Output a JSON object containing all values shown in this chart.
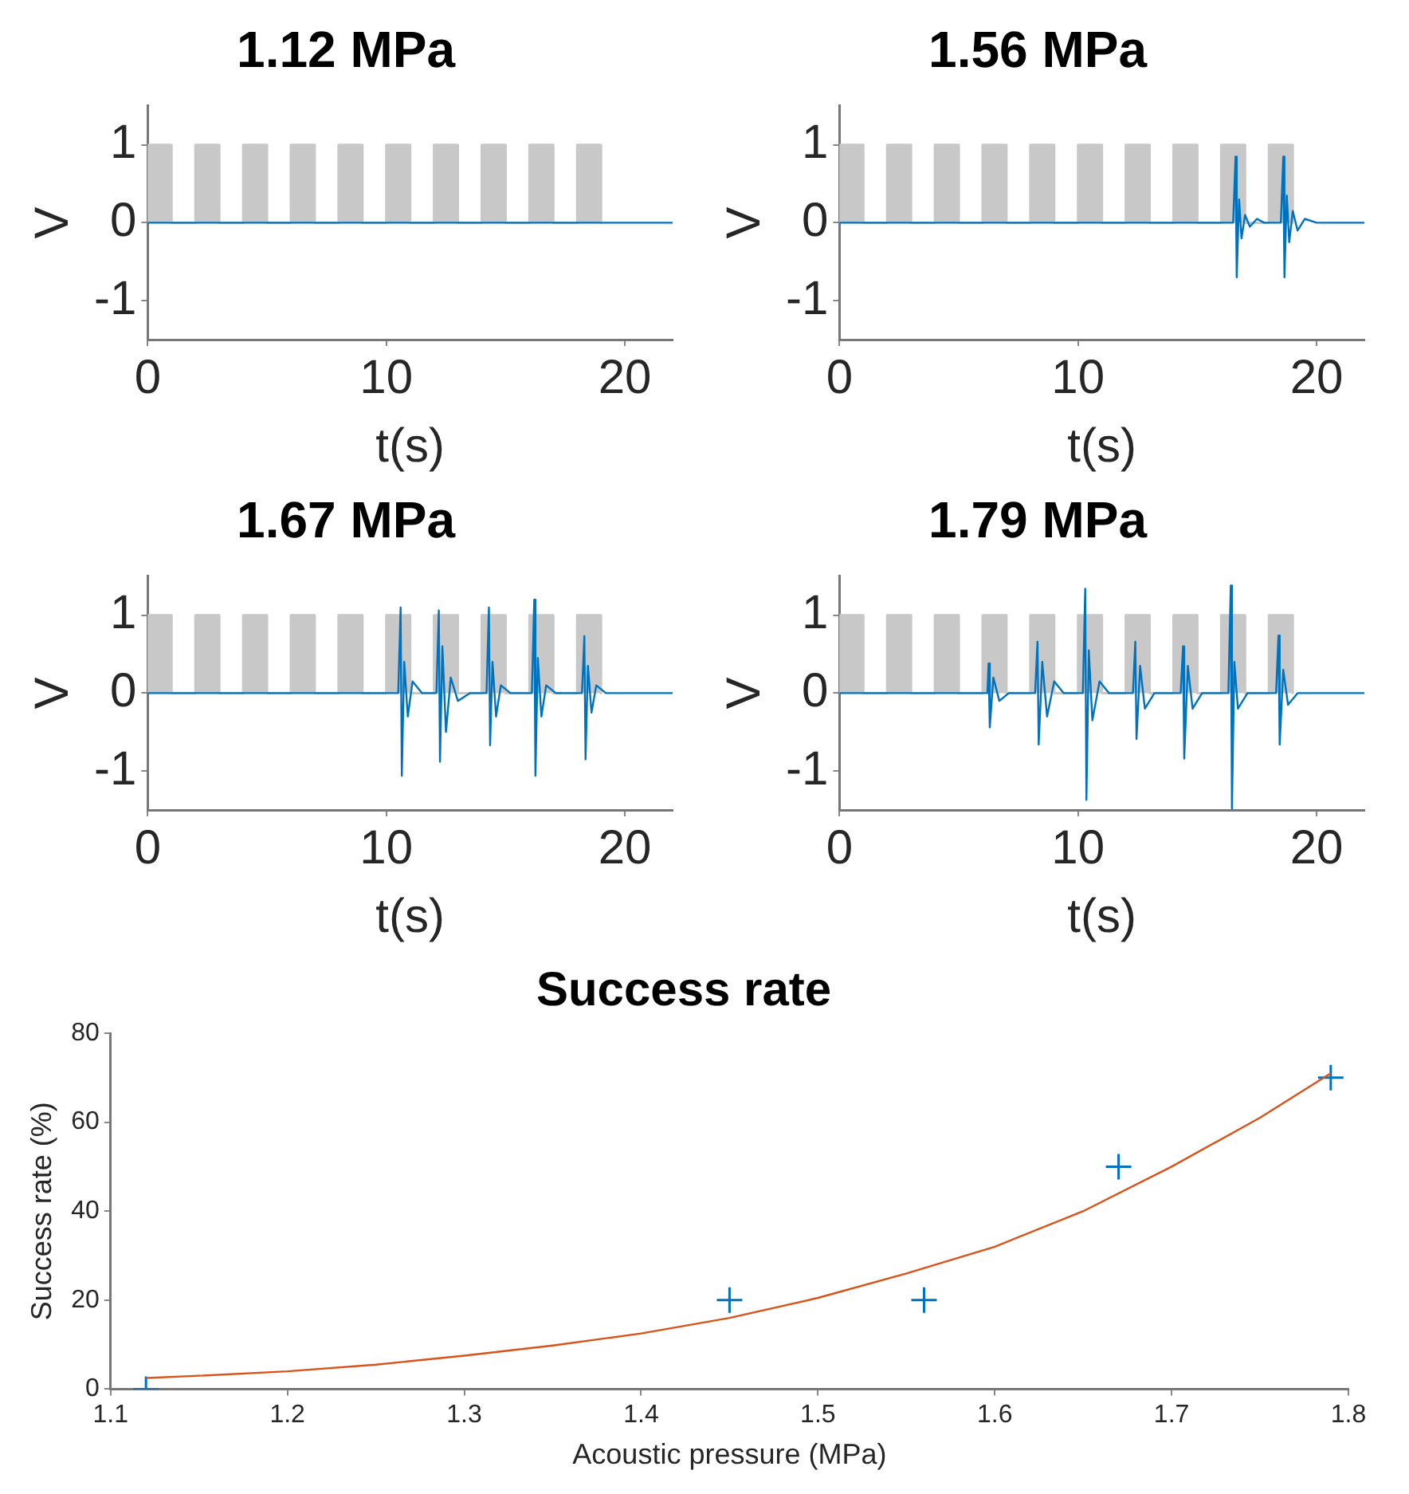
{
  "chart_data": [
    {
      "type": "line",
      "title": "1.12 MPa",
      "xlabel": "t(s)",
      "ylabel": "V",
      "xlim": [
        0,
        22
      ],
      "xticks": [
        0,
        10,
        20
      ],
      "ylim": [
        -1.5,
        1.5
      ],
      "yticks": [
        -1,
        0,
        1
      ],
      "grid": false,
      "series": [
        {
          "type": "area",
          "color": "#c8c8c8",
          "x": [
            0,
            0,
            1,
            1,
            2,
            2,
            3,
            3,
            4,
            4,
            5,
            5,
            6,
            6,
            7,
            7,
            8,
            8,
            9,
            9,
            10,
            10,
            11,
            11,
            12,
            12,
            13,
            13,
            14,
            14,
            15,
            15,
            16,
            16,
            17,
            17,
            18,
            18,
            19,
            19
          ],
          "values": [
            0,
            1,
            1,
            0,
            0,
            1,
            1,
            0,
            0,
            1,
            1,
            0,
            0,
            1,
            1,
            0,
            0,
            1,
            1,
            0,
            0,
            1,
            1,
            0,
            0,
            1,
            1,
            0,
            0,
            1,
            1,
            0,
            0,
            1,
            1,
            0,
            0,
            1,
            1,
            0
          ]
        },
        {
          "color": "#0072bd",
          "x": [
            0,
            22
          ],
          "values": [
            0,
            0
          ]
        }
      ]
    },
    {
      "type": "line",
      "title": "1.56 MPa",
      "xlabel": "t(s)",
      "ylabel": "V",
      "xlim": [
        0,
        22
      ],
      "xticks": [
        0,
        10,
        20
      ],
      "ylim": [
        -1.5,
        1.5
      ],
      "yticks": [
        -1,
        0,
        1
      ],
      "grid": false,
      "series": [
        {
          "type": "area",
          "color": "#c8c8c8",
          "x": [
            0,
            0,
            1,
            1,
            2,
            2,
            3,
            3,
            4,
            4,
            5,
            5,
            6,
            6,
            7,
            7,
            8,
            8,
            9,
            9,
            10,
            10,
            11,
            11,
            12,
            12,
            13,
            13,
            14,
            14,
            15,
            15,
            16,
            16,
            17,
            17,
            18,
            18,
            19,
            19
          ],
          "values": [
            0,
            1,
            1,
            0,
            0,
            1,
            1,
            0,
            0,
            1,
            1,
            0,
            0,
            1,
            1,
            0,
            0,
            1,
            1,
            0,
            0,
            1,
            1,
            0,
            0,
            1,
            1,
            0,
            0,
            1,
            1,
            0,
            0,
            1,
            1,
            0,
            0,
            1,
            1,
            0
          ]
        },
        {
          "color": "#0072bd",
          "x": [
            0,
            16.5,
            16.6,
            16.65,
            16.75,
            16.85,
            17,
            17.2,
            17.5,
            17.8,
            18.5,
            18.6,
            18.65,
            18.75,
            18.85,
            19,
            19.2,
            19.5,
            20,
            22
          ],
          "values": [
            0,
            0,
            0.85,
            -0.7,
            0.3,
            -0.2,
            0.1,
            -0.05,
            0.05,
            0,
            0,
            0.85,
            -0.7,
            0.35,
            -0.25,
            0.15,
            -0.1,
            0.05,
            0,
            0
          ]
        }
      ]
    },
    {
      "type": "line",
      "title": "1.67 MPa",
      "xlabel": "t(s)",
      "ylabel": "V",
      "xlim": [
        0,
        22
      ],
      "xticks": [
        0,
        10,
        20
      ],
      "ylim": [
        -1.5,
        1.5
      ],
      "yticks": [
        -1,
        0,
        1
      ],
      "grid": false,
      "series": [
        {
          "type": "area",
          "color": "#c8c8c8",
          "x": [
            0,
            0,
            1,
            1,
            2,
            2,
            3,
            3,
            4,
            4,
            5,
            5,
            6,
            6,
            7,
            7,
            8,
            8,
            9,
            9,
            10,
            10,
            11,
            11,
            12,
            12,
            13,
            13,
            14,
            14,
            15,
            15,
            16,
            16,
            17,
            17,
            18,
            18,
            19,
            19
          ],
          "values": [
            0,
            1,
            1,
            0,
            0,
            1,
            1,
            0,
            0,
            1,
            1,
            0,
            0,
            1,
            1,
            0,
            0,
            1,
            1,
            0,
            0,
            1,
            1,
            0,
            0,
            1,
            1,
            0,
            0,
            1,
            1,
            0,
            0,
            1,
            1,
            0,
            0,
            1,
            1,
            0
          ]
        },
        {
          "color": "#0072bd",
          "x": [
            0,
            10.5,
            10.6,
            10.65,
            10.75,
            10.9,
            11.1,
            11.5,
            12.1,
            12.2,
            12.25,
            12.35,
            12.5,
            12.7,
            13,
            13.5,
            14.2,
            14.3,
            14.35,
            14.45,
            14.6,
            14.8,
            15.2,
            16.1,
            16.2,
            16.25,
            16.35,
            16.5,
            16.7,
            17.1,
            18.2,
            18.3,
            18.35,
            18.45,
            18.6,
            18.8,
            19.2,
            22
          ],
          "values": [
            0,
            0,
            1.1,
            -1.06,
            0.4,
            -0.3,
            0.15,
            0,
            0,
            1.06,
            -0.88,
            0.6,
            -0.5,
            0.2,
            -0.1,
            0,
            0,
            1.1,
            -0.67,
            0.4,
            -0.3,
            0.1,
            0,
            0,
            1.2,
            -1.06,
            0.45,
            -0.3,
            0.1,
            0,
            0,
            0.73,
            -0.85,
            0.35,
            -0.25,
            0.1,
            0,
            0
          ]
        }
      ]
    },
    {
      "type": "line",
      "title": "1.79 MPa",
      "xlabel": "t(s)",
      "ylabel": "V",
      "xlim": [
        0,
        22
      ],
      "xticks": [
        0,
        10,
        20
      ],
      "ylim": [
        -1.5,
        1.5
      ],
      "yticks": [
        -1,
        0,
        1
      ],
      "grid": false,
      "series": [
        {
          "type": "area",
          "color": "#c8c8c8",
          "x": [
            0,
            0,
            1,
            1,
            2,
            2,
            3,
            3,
            4,
            4,
            5,
            5,
            6,
            6,
            7,
            7,
            8,
            8,
            9,
            9,
            10,
            10,
            11,
            11,
            12,
            12,
            13,
            13,
            14,
            14,
            15,
            15,
            16,
            16,
            17,
            17,
            18,
            18,
            19,
            19
          ],
          "values": [
            0,
            1,
            1,
            0,
            0,
            1,
            1,
            0,
            0,
            1,
            1,
            0,
            0,
            1,
            1,
            0,
            0,
            1,
            1,
            0,
            0,
            1,
            1,
            0,
            0,
            1,
            1,
            0,
            0,
            1,
            1,
            0,
            0,
            1,
            1,
            0,
            0,
            1,
            1,
            0
          ]
        },
        {
          "color": "#0072bd",
          "x": [
            0,
            6.2,
            6.25,
            6.3,
            6.45,
            6.7,
            7.1,
            8.2,
            8.3,
            8.35,
            8.5,
            8.7,
            9.0,
            9.4,
            10.2,
            10.3,
            10.35,
            10.45,
            10.6,
            10.9,
            11.3,
            12.3,
            12.4,
            12.45,
            12.6,
            12.8,
            13.2,
            14.3,
            14.4,
            14.45,
            14.6,
            14.8,
            15.2,
            16.3,
            16.4,
            16.45,
            16.55,
            16.7,
            17.1,
            18.3,
            18.4,
            18.45,
            18.6,
            18.8,
            19.2,
            22
          ],
          "values": [
            0,
            0,
            0.38,
            -0.44,
            0.2,
            -0.1,
            0,
            0,
            0.66,
            -0.66,
            0.4,
            -0.3,
            0.15,
            0,
            0,
            1.34,
            -1.37,
            0.55,
            -0.35,
            0.15,
            0,
            0,
            0.66,
            -0.59,
            0.35,
            -0.2,
            0,
            0,
            0.6,
            -0.84,
            0.35,
            -0.2,
            0,
            0,
            1.38,
            -1.48,
            0.4,
            -0.2,
            0,
            0,
            0.74,
            -0.66,
            0.3,
            -0.15,
            0,
            0
          ]
        }
      ]
    },
    {
      "type": "scatter",
      "title": "Success rate",
      "xlabel": "Acoustic pressure (MPa)",
      "ylabel": "Success rate (%)",
      "xlim": [
        1.1,
        1.8
      ],
      "xticks": [
        1.1,
        1.2,
        1.3,
        1.4,
        1.5,
        1.6,
        1.7,
        1.8
      ],
      "ylim": [
        0,
        80
      ],
      "yticks": [
        0,
        20,
        40,
        60,
        80
      ],
      "grid": false,
      "marker": "cross",
      "series": [
        {
          "color": "#0072bd",
          "x": [
            1.12,
            1.45,
            1.56,
            1.67,
            1.79
          ],
          "values": [
            0,
            20,
            20,
            50,
            70
          ]
        },
        {
          "type": "line",
          "color": "#d95319",
          "marker": "none",
          "x": [
            1.12,
            1.15,
            1.2,
            1.25,
            1.3,
            1.35,
            1.4,
            1.45,
            1.5,
            1.55,
            1.6,
            1.65,
            1.7,
            1.75,
            1.79
          ],
          "values": [
            2.5,
            3,
            4,
            5.5,
            7.5,
            9.8,
            12.5,
            16,
            20.5,
            26,
            32,
            40,
            50,
            61,
            71
          ]
        }
      ]
    }
  ]
}
